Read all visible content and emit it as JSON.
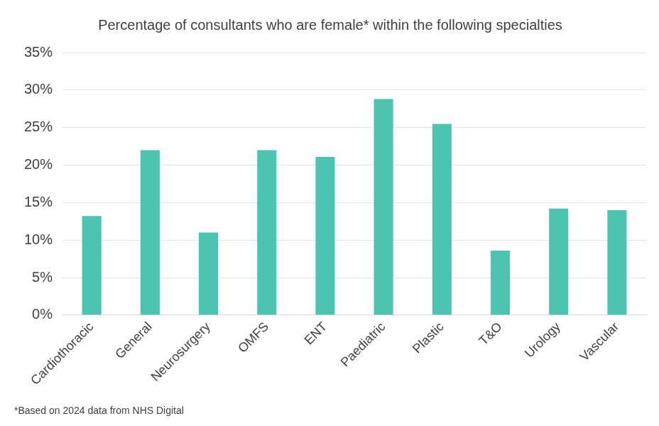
{
  "chart_data": {
    "type": "bar",
    "title": "Percentage of consultants who are female* within the following specialties",
    "categories": [
      "Cardiothoracic",
      "General",
      "Neurosurgery",
      "OMFS",
      "ENT",
      "Paediatric",
      "Plastic",
      "T&O",
      "Urology",
      "Vascular"
    ],
    "values": [
      13.2,
      22,
      11,
      22,
      21.1,
      28.8,
      25.5,
      8.6,
      14.2,
      14
    ],
    "color": "#4cc4b0",
    "ylim": [
      0,
      35
    ],
    "yticks": [
      {
        "value": 0,
        "label": "0%"
      },
      {
        "value": 5,
        "label": "5%"
      },
      {
        "value": 10,
        "label": "10%"
      },
      {
        "value": 15,
        "label": "15%"
      },
      {
        "value": 20,
        "label": "20%"
      },
      {
        "value": 25,
        "label": "25%"
      },
      {
        "value": 30,
        "label": "30%"
      },
      {
        "value": 35,
        "label": "35%"
      }
    ],
    "grid": true,
    "annotations": [
      "*Based on 2024 data from NHS Digital"
    ]
  }
}
